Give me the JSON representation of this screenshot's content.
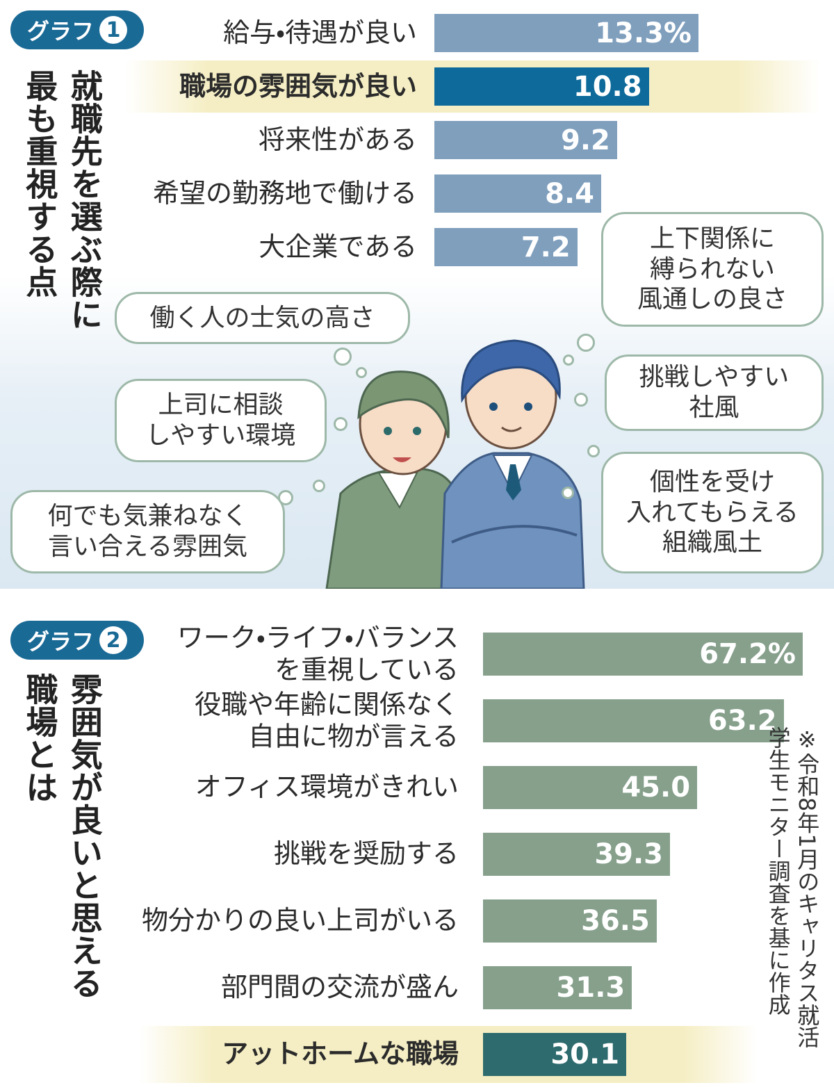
{
  "chart_data": [
    {
      "type": "bar",
      "orientation": "horizontal",
      "badge": "グラフ",
      "badge_number": "1",
      "title": "就職先を選ぶ際に\n最も重視する点",
      "categories": [
        "給与・待遇が良い",
        "職場の雰囲気が良い",
        "将来性がある",
        "希望の勤務地で働ける",
        "大企業である"
      ],
      "values": [
        13.3,
        10.8,
        9.2,
        8.4,
        7.2
      ],
      "value_labels": [
        "13.3%",
        "10.8",
        "9.2",
        "8.4",
        "7.2"
      ],
      "color": "#7f9fbd",
      "highlight": 1,
      "highlight_color": "#0d6a9a"
    },
    {
      "type": "bar",
      "orientation": "horizontal",
      "badge": "グラフ",
      "badge_number": "2",
      "title": "雰囲気が良いと思える\n職場とは",
      "categories": [
        "ワーク・ライフ・バランス\nを重視している",
        "役職や年齢に関係なく\n自由に物が言える",
        "オフィス環境がきれい",
        "挑戦を奨励する",
        "物分かりの良い上司がいる",
        "部門間の交流が盛ん",
        "アットホームな職場"
      ],
      "values": [
        67.2,
        63.2,
        45.0,
        39.3,
        36.5,
        31.3,
        30.1
      ],
      "value_labels": [
        "67.2%",
        "63.2",
        "45.0",
        "39.3",
        "36.5",
        "31.3",
        "30.1"
      ],
      "color": "#86a08c",
      "highlight": 6,
      "highlight_color": "#2e6b6e"
    }
  ],
  "illustration": {
    "bubbles": [
      "働く人の士気の高さ",
      "上司に相談\nしやすい環境",
      "何でも気兼ねなく\n言い合える雰囲気",
      "上下関係に\n縛られない\n風通しの良さ",
      "挑戦しやすい\n社風",
      "個性を受け\n入れてもらえる\n組織風土"
    ]
  },
  "source_note": "※令和8年1月のキャリタス就活\n学生モニター調査を基に作成"
}
